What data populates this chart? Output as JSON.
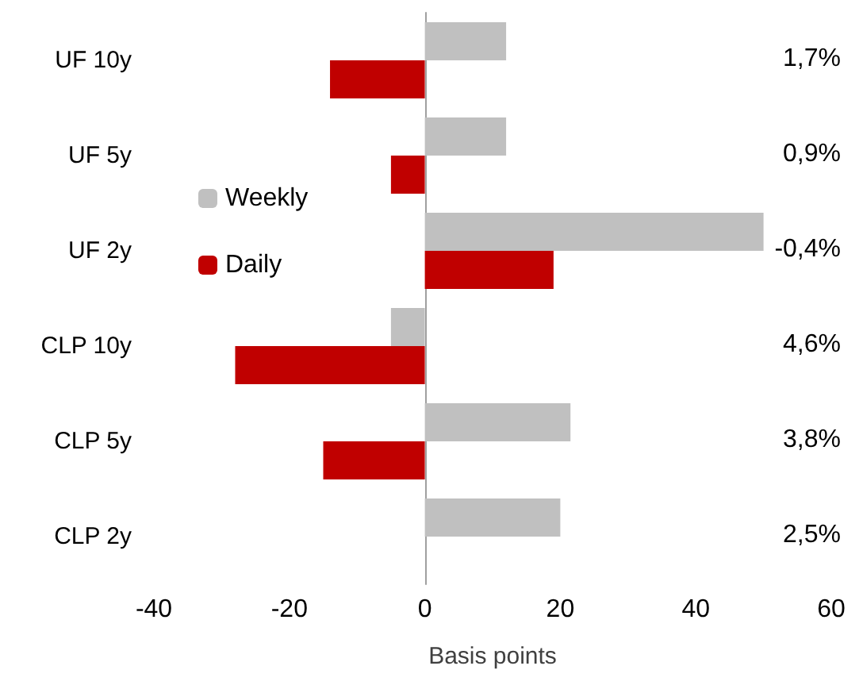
{
  "chart_data": {
    "type": "bar",
    "orientation": "horizontal",
    "categories": [
      "UF 10y",
      "UF 5y",
      "UF 2y",
      "CLP 10y",
      "CLP 5y",
      "CLP 2y"
    ],
    "series": [
      {
        "name": "Weekly",
        "color": "#c0c0c0",
        "values": [
          12,
          12,
          50,
          -5,
          21.5,
          20
        ]
      },
      {
        "name": "Daily",
        "color": "#c00000",
        "values": [
          -14,
          -5,
          19,
          -28,
          -15,
          null
        ]
      }
    ],
    "xlabel": "Basis points",
    "xlim": [
      -40,
      60
    ],
    "xticks": [
      -40,
      -20,
      0,
      20,
      40,
      60
    ],
    "legend": "left",
    "annotations": [
      "1,7%",
      "0,9%",
      "-0,4%",
      "4,6%",
      "3,8%",
      "2,5%"
    ]
  }
}
